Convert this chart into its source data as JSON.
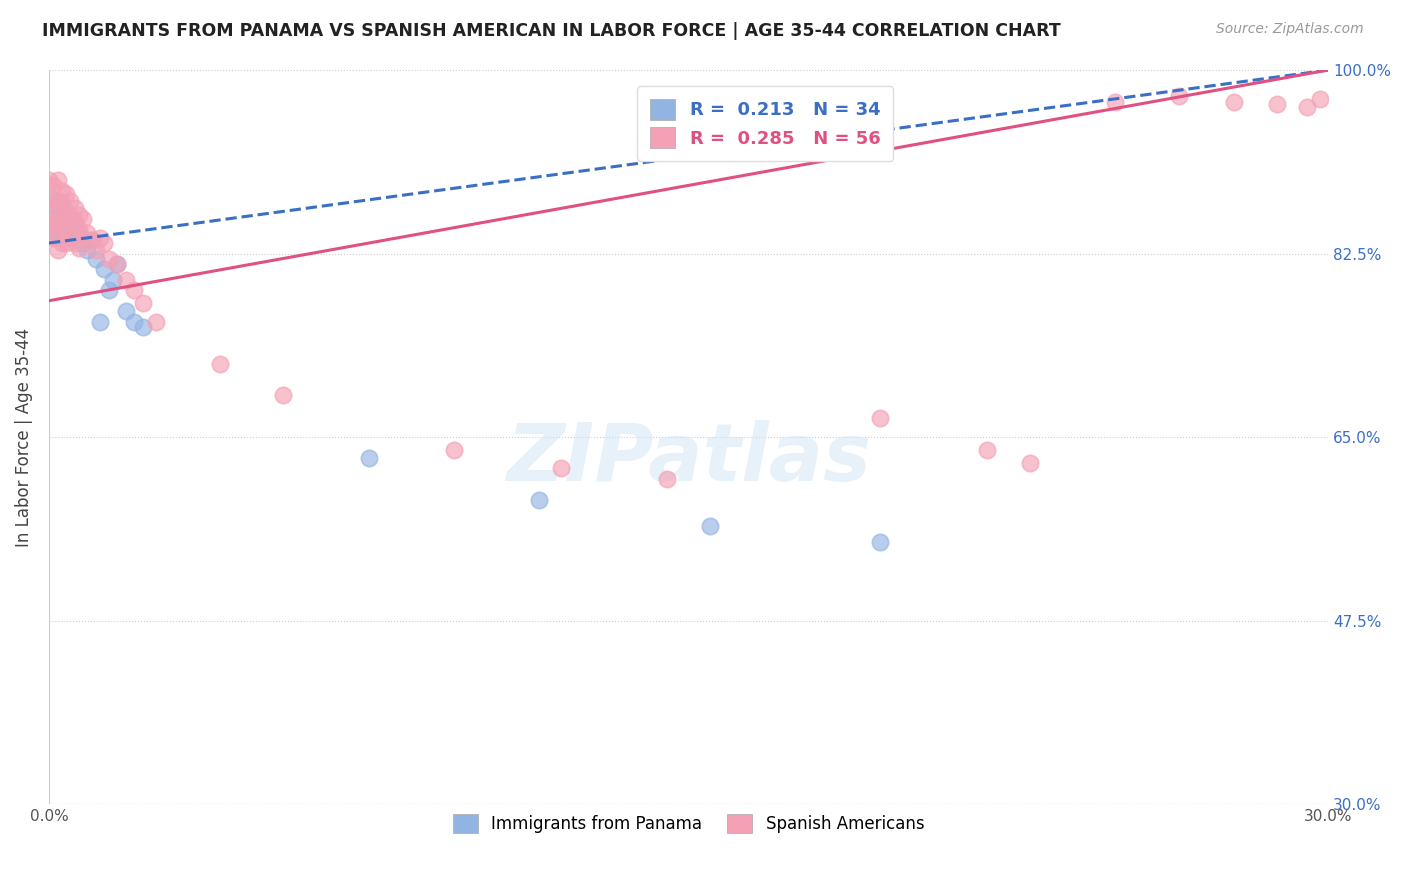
{
  "title": "IMMIGRANTS FROM PANAMA VS SPANISH AMERICAN IN LABOR FORCE | AGE 35-44 CORRELATION CHART",
  "source": "Source: ZipAtlas.com",
  "ylabel": "In Labor Force | Age 35-44",
  "xlim": [
    0.0,
    0.3
  ],
  "ylim": [
    0.3,
    1.0
  ],
  "xticks": [
    0.0,
    0.05,
    0.1,
    0.15,
    0.2,
    0.25,
    0.3
  ],
  "ytick_labels_right": [
    "100.0%",
    "82.5%",
    "65.0%",
    "47.5%",
    "30.0%"
  ],
  "ytick_vals_right": [
    1.0,
    0.825,
    0.65,
    0.475,
    0.3
  ],
  "R_blue": 0.213,
  "N_blue": 34,
  "R_pink": 0.285,
  "N_pink": 56,
  "blue_color": "#92b4e3",
  "pink_color": "#f4a0b5",
  "blue_line_color": "#3a6fc4",
  "pink_line_color": "#e05080",
  "legend_label_blue": "Immigrants from Panama",
  "legend_label_pink": "Spanish Americans",
  "watermark": "ZIPatlas",
  "blue_scatter_x": [
    0.0,
    0.0,
    0.001,
    0.001,
    0.001,
    0.002,
    0.002,
    0.002,
    0.003,
    0.003,
    0.003,
    0.004,
    0.004,
    0.005,
    0.005,
    0.006,
    0.006,
    0.007,
    0.008,
    0.009,
    0.01,
    0.011,
    0.012,
    0.013,
    0.014,
    0.015,
    0.016,
    0.018,
    0.02,
    0.022,
    0.075,
    0.115,
    0.155,
    0.195
  ],
  "blue_scatter_y": [
    0.88,
    0.86,
    0.87,
    0.855,
    0.843,
    0.875,
    0.858,
    0.845,
    0.872,
    0.858,
    0.84,
    0.865,
    0.848,
    0.86,
    0.84,
    0.855,
    0.838,
    0.845,
    0.835,
    0.828,
    0.838,
    0.82,
    0.76,
    0.81,
    0.79,
    0.8,
    0.815,
    0.77,
    0.76,
    0.755,
    0.63,
    0.59,
    0.565,
    0.55
  ],
  "pink_scatter_x": [
    0.0,
    0.0,
    0.0,
    0.001,
    0.001,
    0.001,
    0.001,
    0.002,
    0.002,
    0.002,
    0.002,
    0.002,
    0.003,
    0.003,
    0.003,
    0.003,
    0.004,
    0.004,
    0.004,
    0.004,
    0.005,
    0.005,
    0.005,
    0.006,
    0.006,
    0.006,
    0.007,
    0.007,
    0.007,
    0.008,
    0.008,
    0.009,
    0.01,
    0.011,
    0.012,
    0.013,
    0.014,
    0.016,
    0.018,
    0.02,
    0.022,
    0.025,
    0.04,
    0.055,
    0.095,
    0.12,
    0.145,
    0.195,
    0.22,
    0.23,
    0.25,
    0.265,
    0.278,
    0.288,
    0.295,
    0.298
  ],
  "pink_scatter_y": [
    0.895,
    0.875,
    0.855,
    0.89,
    0.87,
    0.855,
    0.84,
    0.895,
    0.875,
    0.858,
    0.843,
    0.828,
    0.885,
    0.87,
    0.852,
    0.835,
    0.882,
    0.865,
    0.85,
    0.835,
    0.875,
    0.86,
    0.842,
    0.868,
    0.852,
    0.835,
    0.862,
    0.848,
    0.83,
    0.858,
    0.84,
    0.845,
    0.838,
    0.828,
    0.84,
    0.835,
    0.82,
    0.815,
    0.8,
    0.79,
    0.778,
    0.76,
    0.72,
    0.69,
    0.638,
    0.62,
    0.61,
    0.668,
    0.638,
    0.625,
    0.97,
    0.975,
    0.97,
    0.968,
    0.965,
    0.972
  ]
}
